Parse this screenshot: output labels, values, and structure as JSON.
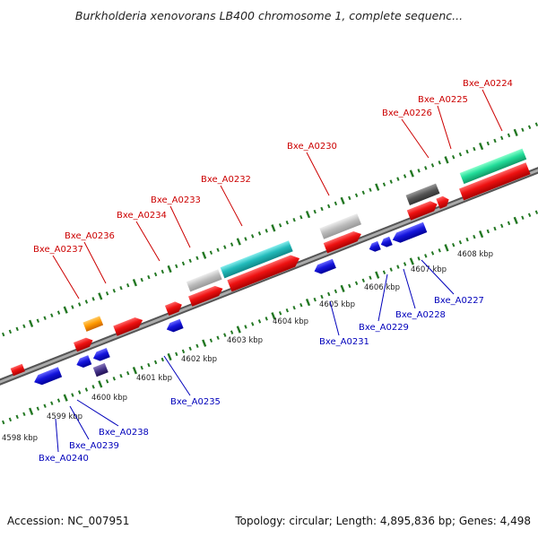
{
  "title": "Burkholderia xenovorans LB400 chromosome 1, complete sequenc...",
  "footer": {
    "accession": "Accession: NC_007951",
    "summary": "Topology: circular; Length: 4,895,836 bp; Genes: 4,498"
  },
  "colors": {
    "backbone": "#777777",
    "forward_gene": "#ee1111",
    "reverse_gene": "#1111dd",
    "forward_label": "#cc0000",
    "reverse_label": "#0000bb",
    "tick": "#227722",
    "scale_label": "#222222"
  },
  "scale_labels": [
    "4598 kbp",
    "4599 kbp",
    "4600 kbp",
    "4601 kbp",
    "4602 kbp",
    "4603 kbp",
    "4604 kbp",
    "4605 kbp",
    "4606 kbp",
    "4607 kbp",
    "4608 kbp"
  ],
  "forward_labels": [
    "Bxe_A0224",
    "Bxe_A0225",
    "Bxe_A0226",
    "Bxe_A0230",
    "Bxe_A0232",
    "Bxe_A0233",
    "Bxe_A0234",
    "Bxe_A0236",
    "Bxe_A0237"
  ],
  "reverse_labels": [
    "Bxe_A0227",
    "Bxe_A0228",
    "Bxe_A0229",
    "Bxe_A0231",
    "Bxe_A0235",
    "Bxe_A0238",
    "Bxe_A0239",
    "Bxe_A0240"
  ]
}
